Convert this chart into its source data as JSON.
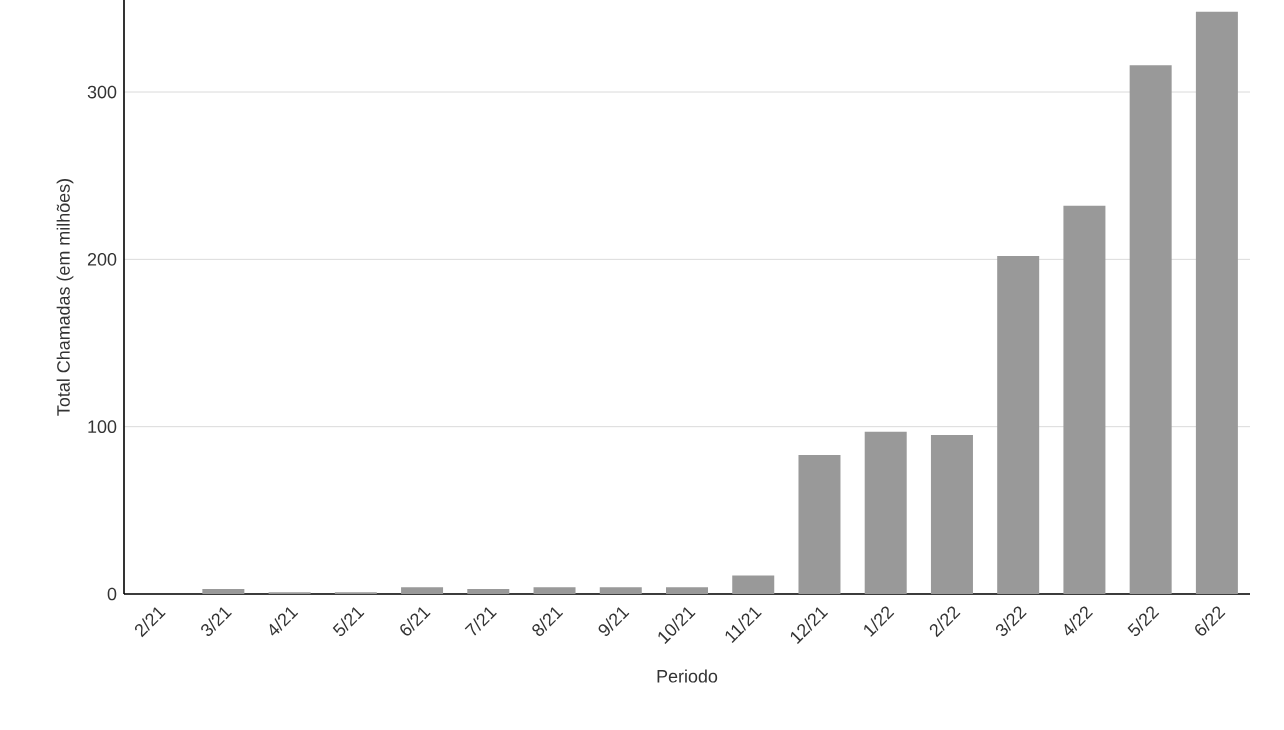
{
  "chart_data": {
    "type": "bar",
    "xlabel": "Periodo",
    "ylabel": "Total Chamadas (em milhões)",
    "categories": [
      "2/21",
      "3/21",
      "4/21",
      "5/21",
      "6/21",
      "7/21",
      "8/21",
      "9/21",
      "10/21",
      "11/21",
      "12/21",
      "1/22",
      "2/22",
      "3/22",
      "4/22",
      "5/22",
      "6/22"
    ],
    "values": [
      null,
      3,
      1,
      1,
      4,
      3,
      4,
      4,
      4,
      11,
      83,
      97,
      95,
      202,
      232,
      316,
      348
    ],
    "color": "#999999",
    "ylim": [
      0,
      355
    ],
    "yticks": [
      0,
      100,
      200,
      300
    ],
    "grid": "y"
  }
}
